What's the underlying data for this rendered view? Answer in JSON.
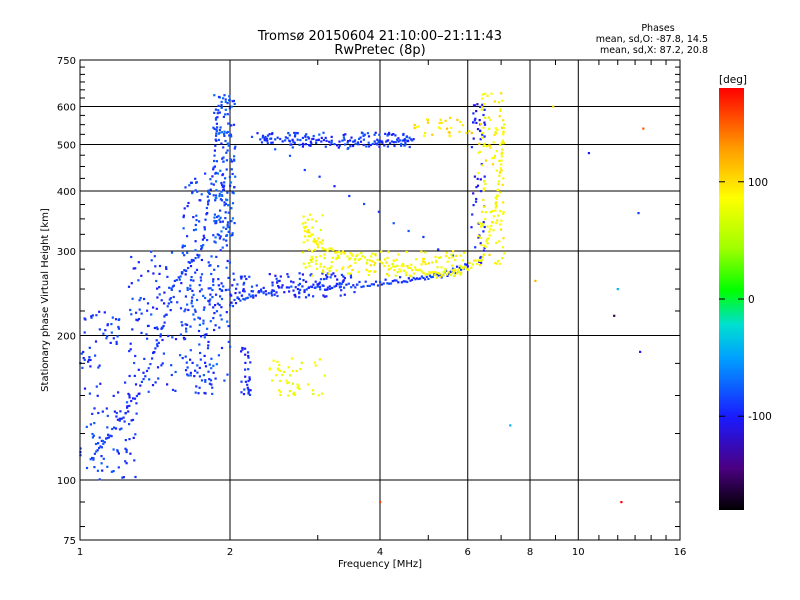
{
  "chart_data": {
    "type": "scatter",
    "title": "Tromsø 20150604 21:10:00–21:11:43",
    "subtitle": "RwPretec (8p)",
    "xlabel": "Frequency [MHz]",
    "ylabel": "Stationary phase Virtual Height [km]",
    "xscale": "log",
    "yscale": "log",
    "xlim": [
      1,
      16
    ],
    "ylim": [
      75,
      750
    ],
    "xticks": [
      1,
      2,
      4,
      6,
      8,
      10,
      16
    ],
    "xtick_labels": [
      "1",
      "2",
      "4",
      "6",
      "8",
      "10",
      "16"
    ],
    "yticks": [
      75,
      100,
      200,
      300,
      400,
      500,
      600,
      750
    ],
    "ytick_labels": [
      "75",
      "100",
      "200",
      "300",
      "400",
      "500",
      "600",
      "750"
    ],
    "grid": true,
    "phases": {
      "heading": "Phases",
      "o_stats": "mean, sd,O: -87.8, 14.5",
      "x_stats": "mean, sd,X: 87.2, 20.8"
    },
    "colorbar": {
      "label": "[deg]",
      "min": -180,
      "max": 180,
      "ticks": [
        100,
        0,
        -100
      ],
      "tick_labels": [
        "100",
        "0",
        "-100"
      ],
      "colormap": "rainbow (black-purple-blue-cyan-green-yellow-orange-red)"
    },
    "series": [
      {
        "regions": [
          {
            "x": [
              1.0,
              1.3
            ],
            "y": [
              100,
              160
            ],
            "phase": -90,
            "density": 80
          },
          {
            "x": [
              1.0,
              1.2
            ],
            "y": [
              170,
              230
            ],
            "phase": -90,
            "density": 45
          },
          {
            "x": [
              1.25,
              1.9
            ],
            "y": [
              150,
              300
            ],
            "phase": -90,
            "density": 190
          },
          {
            "x": [
              1.6,
              2.0
            ],
            "y": [
              160,
              440
            ],
            "phase": -85,
            "density": 160
          },
          {
            "x": [
              1.85,
              2.05
            ],
            "y": [
              320,
              640
            ],
            "phase": -80,
            "density": 140
          },
          {
            "x": [
              2.0,
              3.6
            ],
            "y": [
              240,
              270
            ],
            "phase": -95,
            "density": 120
          },
          {
            "x": [
              2.1,
              2.2
            ],
            "y": [
              150,
              190
            ],
            "phase": -95,
            "density": 30
          },
          {
            "x": [
              2.2,
              4.6
            ],
            "y": [
              490,
              530
            ],
            "phase": -90,
            "density": 110
          },
          {
            "x": [
              6.1,
              6.5
            ],
            "y": [
              280,
              620
            ],
            "phase": -105,
            "density": 55
          }
        ],
        "trace_points": [
          [
            1.05,
            110
          ],
          [
            1.15,
            125
          ],
          [
            1.3,
            150
          ],
          [
            1.45,
            200
          ],
          [
            1.55,
            260
          ],
          [
            1.75,
            300
          ],
          [
            1.85,
            440
          ],
          [
            1.9,
            620
          ],
          [
            2.0,
            232
          ],
          [
            2.2,
            245
          ],
          [
            2.6,
            250
          ],
          [
            3.0,
            252
          ],
          [
            3.5,
            254
          ],
          [
            4.0,
            258
          ],
          [
            4.5,
            262
          ],
          [
            5.0,
            265
          ],
          [
            5.5,
            270
          ],
          [
            6.0,
            280
          ],
          [
            2.3,
            510
          ],
          [
            2.7,
            515
          ],
          [
            3.2,
            505
          ],
          [
            3.8,
            500
          ],
          [
            4.3,
            505
          ],
          [
            4.7,
            515
          ]
        ]
      },
      {
        "regions": [
          {
            "x": [
              2.8,
              6.0
            ],
            "y": [
              265,
              300
            ],
            "phase": 85,
            "density": 140
          },
          {
            "x": [
              6.3,
              7.1
            ],
            "y": [
              280,
              640
            ],
            "phase": 90,
            "density": 110
          },
          {
            "x": [
              2.4,
              3.1
            ],
            "y": [
              150,
              180
            ],
            "phase": 80,
            "density": 45
          },
          {
            "x": [
              4.6,
              6.2
            ],
            "y": [
              520,
              570
            ],
            "phase": 100,
            "density": 30
          },
          {
            "x": [
              2.8,
              3.1
            ],
            "y": [
              300,
              360
            ],
            "phase": 85,
            "density": 25
          }
        ],
        "trace_points": [
          [
            2.8,
            340
          ],
          [
            3.0,
            310
          ],
          [
            3.4,
            295
          ],
          [
            4.0,
            283
          ],
          [
            4.6,
            273
          ],
          [
            5.2,
            268
          ],
          [
            5.8,
            272
          ],
          [
            6.4,
            290
          ],
          [
            6.8,
            360
          ],
          [
            7.0,
            460
          ],
          [
            7.1,
            560
          ]
        ]
      }
    ],
    "outliers": [
      [
        8.9,
        600,
        100
      ],
      [
        10.5,
        480,
        -100
      ],
      [
        11.8,
        220,
        -160
      ],
      [
        13.5,
        540,
        150
      ],
      [
        13.2,
        360,
        -90
      ],
      [
        12.2,
        90,
        180
      ],
      [
        13.3,
        185,
        -105
      ],
      [
        7.3,
        130,
        -40
      ],
      [
        8.2,
        260,
        120
      ],
      [
        4.0,
        90,
        160
      ],
      [
        12.0,
        250,
        -40
      ]
    ]
  }
}
